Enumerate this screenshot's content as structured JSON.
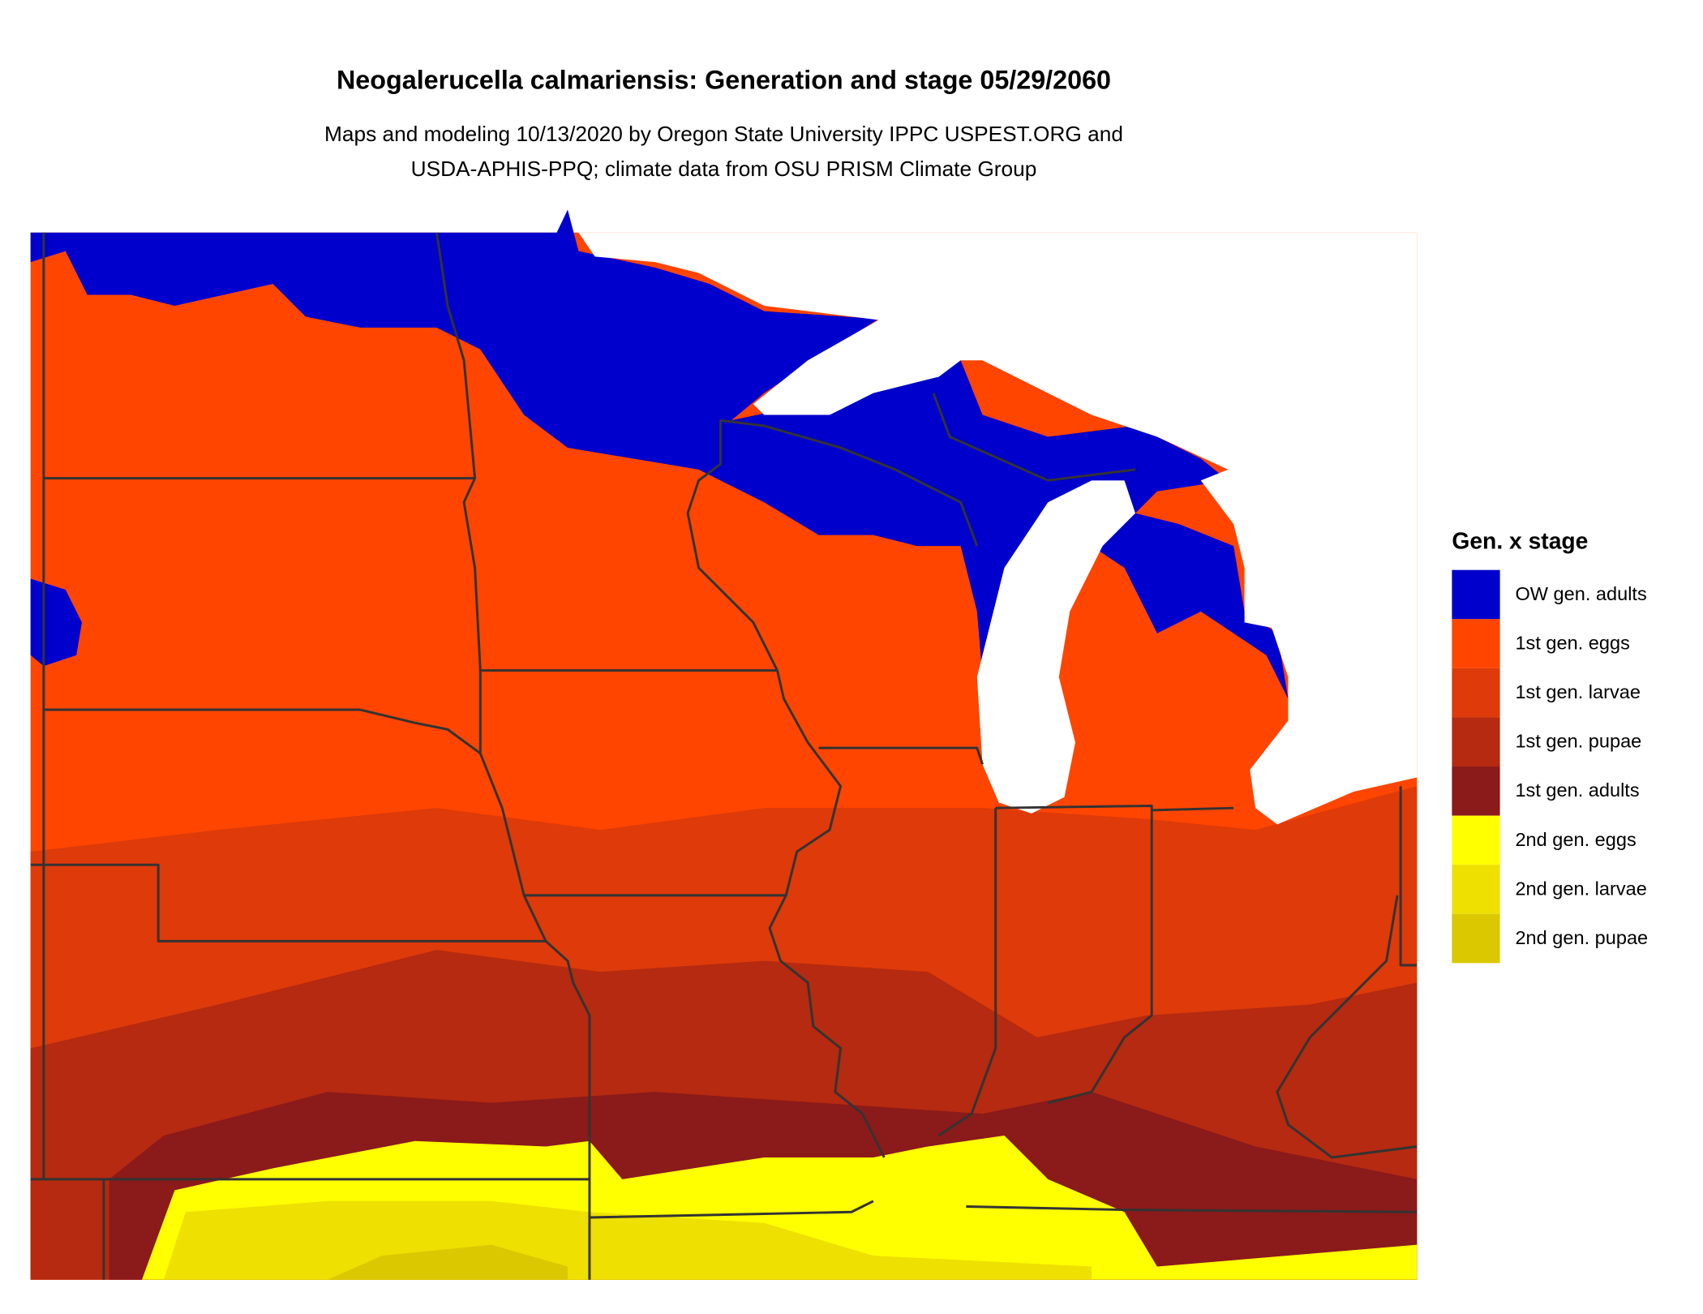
{
  "title": "Neogalerucella calmariensis: Generation and stage 05/29/2060",
  "subtitle": [
    "Maps and modeling 10/13/2020 by Oregon State University IPPC USPEST.ORG and",
    "USDA-APHIS-PPQ; climate data from OSU PRISM Climate Group"
  ],
  "legend": {
    "title": "Gen. x stage",
    "items": [
      {
        "label": "OW gen. adults",
        "color": "#0000cc"
      },
      {
        "label": "1st gen. eggs",
        "color": "#ff4500"
      },
      {
        "label": "1st gen. larvae",
        "color": "#de3a0a"
      },
      {
        "label": "1st gen. pupae",
        "color": "#b52a10"
      },
      {
        "label": "1st gen. adults",
        "color": "#8b1a1a"
      },
      {
        "label": "2nd gen. eggs",
        "color": "#ffff00"
      },
      {
        "label": "2nd gen. larvae",
        "color": "#eee000"
      },
      {
        "label": "2nd gen. pupae",
        "color": "#dcc800"
      }
    ]
  }
}
